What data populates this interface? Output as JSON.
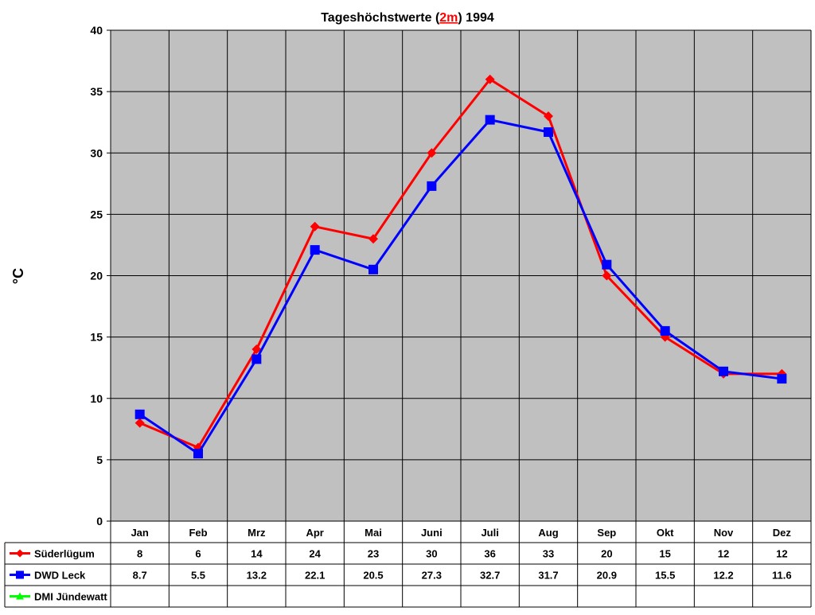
{
  "chart_data": {
    "type": "line",
    "title": {
      "before": "Tageshöchstwerte (",
      "highlight": "2m",
      "after": ") 1994",
      "highlight_color": "#ff0000"
    },
    "ylabel": "°C",
    "xlabel": "",
    "ylim": [
      0,
      40
    ],
    "yticks": [
      0,
      5,
      10,
      15,
      20,
      25,
      30,
      35,
      40
    ],
    "grid": true,
    "plot_background": "#c0c0c0",
    "categories": [
      "Jan",
      "Feb",
      "Mrz",
      "Apr",
      "Mai",
      "Juni",
      "Juli",
      "Aug",
      "Sep",
      "Okt",
      "Nov",
      "Dez"
    ],
    "series": [
      {
        "name": "Süderlügum",
        "color": "#ff0000",
        "marker": "diamond",
        "values": [
          8,
          6,
          14,
          24,
          23,
          30,
          36,
          33,
          20,
          15,
          12,
          12
        ],
        "labels": [
          "8",
          "6",
          "14",
          "24",
          "23",
          "30",
          "36",
          "33",
          "20",
          "15",
          "12",
          "12"
        ]
      },
      {
        "name": "DWD Leck",
        "color": "#0000ff",
        "marker": "square",
        "values": [
          8.7,
          5.5,
          13.2,
          22.1,
          20.5,
          27.3,
          32.7,
          31.7,
          20.9,
          15.5,
          12.2,
          11.6
        ],
        "labels": [
          "8.7",
          "5.5",
          "13.2",
          "22.1",
          "20.5",
          "27.3",
          "32.7",
          "31.7",
          "20.9",
          "15.5",
          "12.2",
          "11.6"
        ]
      },
      {
        "name": "DMI Jündewatt",
        "color": "#00ff00",
        "marker": "triangle",
        "values": [
          null,
          null,
          null,
          null,
          null,
          null,
          null,
          null,
          null,
          null,
          null,
          null
        ],
        "labels": [
          "",
          "",
          "",
          "",
          "",
          "",
          "",
          "",
          "",
          "",
          "",
          ""
        ]
      }
    ]
  }
}
